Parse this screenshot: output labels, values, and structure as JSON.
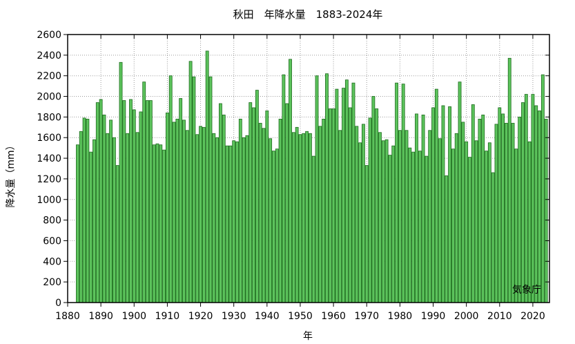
{
  "chart_data": {
    "type": "bar",
    "title": "秋田　年降水量　1883-2024年",
    "xlabel": "年",
    "ylabel": "降水量（mm）",
    "source": "気象庁",
    "xlim": [
      1880,
      2025
    ],
    "ylim": [
      0,
      2600
    ],
    "grid": true,
    "x_ticks": [
      "1880",
      "1890",
      "1900",
      "1910",
      "1920",
      "1930",
      "1940",
      "1950",
      "1960",
      "1970",
      "1980",
      "1990",
      "2000",
      "2010",
      "2020"
    ],
    "y_ticks": [
      "0",
      "200",
      "400",
      "600",
      "800",
      "1000",
      "1200",
      "1400",
      "1600",
      "1800",
      "2000",
      "2200",
      "2400",
      "2600"
    ],
    "start_year": 1883,
    "series": [
      {
        "values": [
          1530,
          1660,
          1790,
          1780,
          1460,
          1580,
          1940,
          1970,
          1820,
          1640,
          1770,
          1600,
          1330,
          2330,
          1960,
          1640,
          1970,
          1870,
          1650,
          1850,
          2140,
          1960,
          1960,
          1530,
          1540,
          1530,
          1480,
          1840,
          2200,
          1750,
          1780,
          1980,
          1770,
          1670,
          2340,
          2190,
          1630,
          1710,
          1700,
          2440,
          2190,
          1640,
          1600,
          1930,
          1820,
          1520,
          1520,
          1570,
          1560,
          1780,
          1600,
          1620,
          1940,
          1890,
          2060,
          1740,
          1690,
          1860,
          1590,
          1470,
          1490,
          1780,
          2210,
          1930,
          2360,
          1650,
          1700,
          1630,
          1640,
          1660,
          1640,
          1420,
          2200,
          1710,
          1780,
          2220,
          1880,
          1880,
          2070,
          1670,
          2080,
          2160,
          1890,
          2130,
          1710,
          1550,
          1730,
          1330,
          1790,
          2000,
          1880,
          1650,
          1570,
          1580,
          1430,
          1520,
          2130,
          1670,
          2120,
          1670,
          1500,
          1460,
          1830,
          1470,
          1820,
          1420,
          1670,
          1890,
          2070,
          1590,
          1910,
          1230,
          1900,
          1490,
          1640,
          2140,
          1750,
          1560,
          1410,
          1920,
          1570,
          1780,
          1820,
          1470,
          1550,
          1260,
          1730,
          1890,
          1830,
          1740,
          2370,
          1740,
          1490,
          1800,
          1940,
          2020,
          1560,
          2020,
          1910,
          1860,
          2210,
          1780
        ]
      }
    ]
  }
}
